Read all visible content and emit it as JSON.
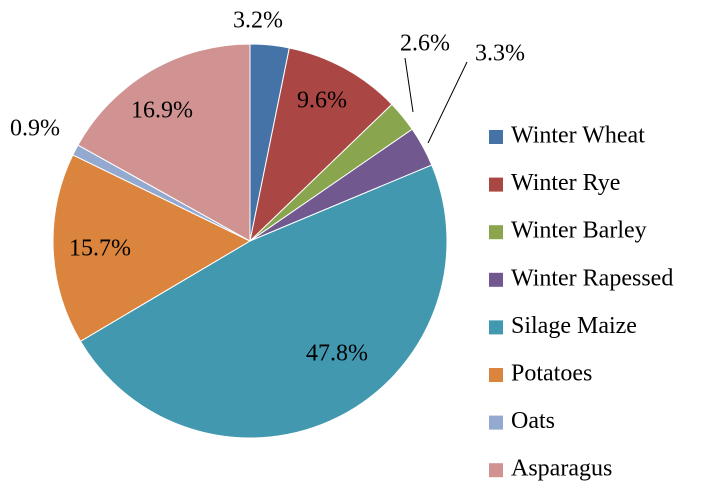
{
  "chart_data": {
    "type": "pie",
    "categories": [
      "Winter Wheat",
      "Winter Rye",
      "Winter Barley",
      "Winter Rapessed",
      "Silage Maize",
      "Potatoes",
      "Oats",
      "Asparagus"
    ],
    "values": [
      3.2,
      9.6,
      2.6,
      3.3,
      47.8,
      15.7,
      0.9,
      16.9
    ],
    "value_labels": [
      "3.2%",
      "9.6%",
      "2.6%",
      "3.3%",
      "47.8%",
      "15.7%",
      "0.9%",
      "16.9%"
    ],
    "colors": [
      "#4572a7",
      "#aa4643",
      "#89a54e",
      "#71588f",
      "#4198af",
      "#db843d",
      "#93a9cf",
      "#d19392"
    ],
    "legend": "right"
  }
}
